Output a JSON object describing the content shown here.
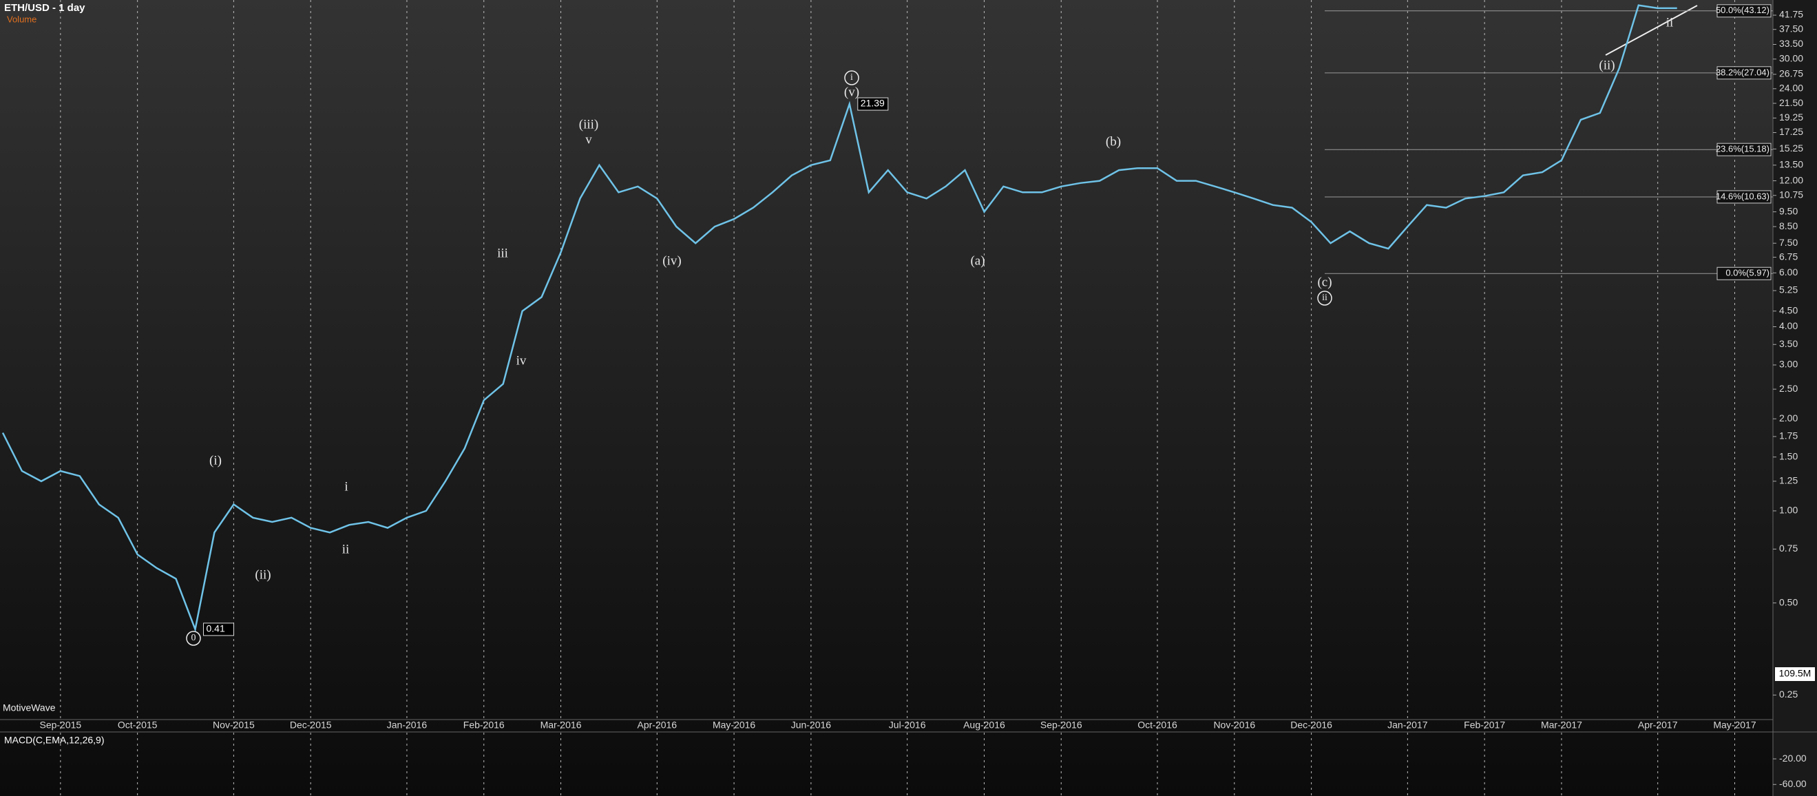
{
  "chart_data": {
    "type": "line",
    "title": "ETH/USD - 1 day",
    "subtitle": "Volume",
    "watermark": "MotiveWave",
    "volume_value": "109.5M",
    "macd_title": "MACD(C,EMA,12,26,9)",
    "macd_ylim": [
      -78,
      22
    ],
    "macd_yticks": [
      {
        "value": -20,
        "label": "-20.00"
      },
      {
        "value": -60,
        "label": "-60.00"
      }
    ],
    "log_scale": true,
    "color": "#6fc3e8",
    "ylim": [
      0.21,
      46.8
    ],
    "yticks": [
      41.75,
      {
        "value": 37.5,
        "label": "37.50"
      },
      {
        "value": 33.5,
        "label": "33.50"
      },
      {
        "value": 30,
        "label": "30.00"
      },
      26.75,
      {
        "value": 24,
        "label": "24.00"
      },
      {
        "value": 21.5,
        "label": "21.50"
      },
      19.25,
      17.25,
      15.25,
      {
        "value": 13.5,
        "label": "13.50"
      },
      {
        "value": 12,
        "label": "12.00"
      },
      10.75,
      {
        "value": 9.5,
        "label": "9.50"
      },
      {
        "value": 8.5,
        "label": "8.50"
      },
      {
        "value": 7.5,
        "label": "7.50"
      },
      6.75,
      {
        "value": 6,
        "label": "6.00"
      },
      5.25,
      {
        "value": 4.5,
        "label": "4.50"
      },
      {
        "value": 4,
        "label": "4.00"
      },
      {
        "value": 3.5,
        "label": "3.50"
      },
      {
        "value": 3,
        "label": "3.00"
      },
      {
        "value": 2.5,
        "label": "2.50"
      },
      {
        "value": 2,
        "label": "2.00"
      },
      1.75,
      {
        "value": 1.5,
        "label": "1.50"
      },
      1.25,
      {
        "value": 1,
        "label": "1.00"
      },
      0.75,
      {
        "value": 0.5,
        "label": "0.50"
      },
      0.25
    ],
    "categories": [
      null,
      null,
      null,
      "Sep-2015",
      null,
      null,
      null,
      "Oct-2015",
      null,
      null,
      null,
      null,
      "Nov-2015",
      null,
      null,
      null,
      "Dec-2015",
      null,
      null,
      null,
      null,
      "Jan-2016",
      null,
      null,
      null,
      "Feb-2016",
      null,
      null,
      null,
      "Mar-2016",
      null,
      null,
      null,
      null,
      "Apr-2016",
      null,
      null,
      null,
      "May-2016",
      null,
      null,
      null,
      "Jun-2016",
      null,
      null,
      null,
      null,
      "Jul-2016",
      null,
      null,
      null,
      "Aug-2016",
      null,
      null,
      null,
      "Sep-2016",
      null,
      null,
      null,
      null,
      "Oct-2016",
      null,
      null,
      null,
      "Nov-2016",
      null,
      null,
      null,
      "Dec-2016",
      null,
      null,
      null,
      null,
      "Jan-2017",
      null,
      null,
      null,
      "Feb-2017",
      null,
      null,
      null,
      "Mar-2017",
      null,
      null,
      null,
      null,
      "Apr-2017",
      null,
      null,
      null,
      "May-2017",
      null,
      null
    ],
    "values": [
      1.8,
      1.35,
      1.25,
      1.35,
      1.3,
      1.05,
      0.95,
      0.72,
      0.65,
      0.6,
      0.41,
      0.85,
      1.05,
      0.95,
      0.92,
      0.95,
      0.88,
      0.85,
      0.9,
      0.92,
      0.88,
      0.95,
      1.0,
      1.25,
      1.6,
      2.3,
      2.6,
      4.5,
      5.0,
      7.0,
      10.5,
      13.5,
      11,
      11.5,
      10.5,
      8.5,
      7.5,
      8.5,
      9.0,
      9.8,
      11,
      12.5,
      13.5,
      14,
      21.39,
      11,
      13,
      11,
      10.5,
      11.5,
      13,
      9.5,
      11.5,
      11,
      11,
      11.5,
      11.8,
      12,
      13,
      13.2,
      13.2,
      12,
      12,
      11.5,
      11,
      10.5,
      10,
      9.8,
      8.8,
      7.5,
      8.2,
      7.5,
      7.2,
      8.5,
      10,
      9.8,
      10.5,
      10.7,
      11,
      12.5,
      12.8,
      14,
      19,
      20,
      28,
      45,
      44,
      44,
      null,
      null,
      null,
      null,
      null
    ],
    "value_labels": [
      null,
      null,
      null,
      null,
      null,
      null,
      null,
      null,
      null,
      null,
      "0.41",
      null,
      null,
      null,
      null,
      null,
      null,
      null,
      null,
      null,
      null,
      null,
      null,
      null,
      null,
      null,
      null,
      null,
      null,
      null,
      null,
      null,
      null,
      null,
      null,
      null,
      null,
      null,
      null,
      null,
      null,
      null,
      null,
      null,
      "21.39",
      null,
      null,
      null,
      null,
      null,
      null,
      null,
      null,
      null,
      null,
      null,
      null,
      null,
      null,
      null,
      null,
      null,
      null,
      null,
      null,
      null,
      null,
      null,
      null,
      null,
      null,
      null,
      null,
      null,
      null,
      null,
      null,
      null,
      null,
      null,
      null,
      null,
      null,
      null,
      null,
      null,
      null,
      null,
      null,
      null,
      null,
      null,
      null
    ],
    "fib_levels": [
      {
        "value": 43.12,
        "label": "50.0%(43.12)"
      },
      {
        "value": 27.04,
        "label": "38.2%(27.04)"
      },
      {
        "value": 15.18,
        "label": "23.6%(15.18)"
      },
      {
        "value": 10.63,
        "label": "14.6%(10.63)"
      },
      {
        "value": 5.97,
        "label": "0.0%(5.97)"
      }
    ],
    "wave_labels": [
      "0",
      "(i)",
      "(ii)",
      "i",
      "ii",
      "iii",
      "iv",
      "(iii)",
      "v",
      "(iv)",
      "i",
      "(v)",
      "(a)",
      "(b)",
      "(c)",
      "ii",
      "(ii)",
      "ii"
    ]
  }
}
